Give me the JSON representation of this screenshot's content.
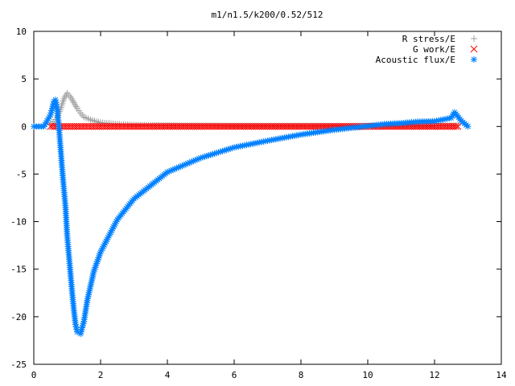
{
  "chart_data": {
    "type": "scatter",
    "title": "m1/n1.5/k200/0.52/512",
    "xlabel": "",
    "ylabel": "",
    "xlim": [
      0,
      14
    ],
    "ylim": [
      -25,
      10
    ],
    "xticks": [
      "0",
      "2",
      "4",
      "6",
      "8",
      "10",
      "12",
      "14"
    ],
    "yticks": [
      "10",
      "5",
      "0",
      "-5",
      "-10",
      "-15",
      "-20",
      "-25"
    ],
    "grid": false,
    "legend_position": "top-right",
    "series": [
      {
        "name": "R stress/E",
        "marker": "plus",
        "color": "#a0a0a0",
        "points": [
          [
            0.5,
            0.2
          ],
          [
            0.6,
            0.5
          ],
          [
            0.7,
            1.0
          ],
          [
            0.8,
            1.8
          ],
          [
            0.9,
            2.9
          ],
          [
            1.0,
            3.5
          ],
          [
            1.1,
            3.1
          ],
          [
            1.2,
            2.5
          ],
          [
            1.3,
            1.9
          ],
          [
            1.4,
            1.4
          ],
          [
            1.5,
            1.0
          ],
          [
            1.7,
            0.7
          ],
          [
            2.0,
            0.4
          ],
          [
            2.5,
            0.25
          ],
          [
            3.0,
            0.15
          ],
          [
            4.0,
            0.1
          ],
          [
            6.0,
            0.05
          ],
          [
            10.0,
            0.05
          ],
          [
            12.0,
            0.05
          ],
          [
            12.7,
            0.1
          ]
        ]
      },
      {
        "name": "G work/E",
        "marker": "cross",
        "color": "#ff0000",
        "points": [
          [
            0.5,
            0.0
          ],
          [
            2.0,
            0.0
          ],
          [
            4.0,
            0.0
          ],
          [
            6.0,
            0.0
          ],
          [
            8.0,
            0.0
          ],
          [
            10.0,
            0.0
          ],
          [
            12.0,
            0.0
          ],
          [
            12.7,
            0.0
          ]
        ]
      },
      {
        "name": "Acoustic flux/E",
        "marker": "star",
        "color": "#0080ff",
        "points": [
          [
            0.0,
            0.0
          ],
          [
            0.3,
            0.0
          ],
          [
            0.5,
            1.2
          ],
          [
            0.6,
            2.6
          ],
          [
            0.65,
            2.8
          ],
          [
            0.7,
            1.8
          ],
          [
            0.75,
            0.0
          ],
          [
            0.8,
            -2.2
          ],
          [
            0.85,
            -4.5
          ],
          [
            0.9,
            -6.5
          ],
          [
            0.95,
            -8.5
          ],
          [
            1.0,
            -11.5
          ],
          [
            1.05,
            -13.5
          ],
          [
            1.1,
            -15.5
          ],
          [
            1.15,
            -17.5
          ],
          [
            1.2,
            -19.3
          ],
          [
            1.25,
            -20.8
          ],
          [
            1.3,
            -21.6
          ],
          [
            1.4,
            -21.8
          ],
          [
            1.5,
            -20.5
          ],
          [
            1.6,
            -18.3
          ],
          [
            1.8,
            -15.2
          ],
          [
            2.0,
            -13.2
          ],
          [
            2.5,
            -9.8
          ],
          [
            3.0,
            -7.6
          ],
          [
            4.0,
            -4.8
          ],
          [
            5.0,
            -3.3
          ],
          [
            6.0,
            -2.2
          ],
          [
            7.0,
            -1.5
          ],
          [
            8.0,
            -0.85
          ],
          [
            9.0,
            -0.35
          ],
          [
            10.0,
            0.05
          ],
          [
            10.5,
            0.25
          ],
          [
            11.0,
            0.35
          ],
          [
            11.5,
            0.5
          ],
          [
            12.0,
            0.55
          ],
          [
            12.5,
            0.9
          ],
          [
            12.6,
            1.5
          ],
          [
            12.8,
            0.6
          ],
          [
            13.0,
            0.0
          ]
        ]
      }
    ]
  }
}
